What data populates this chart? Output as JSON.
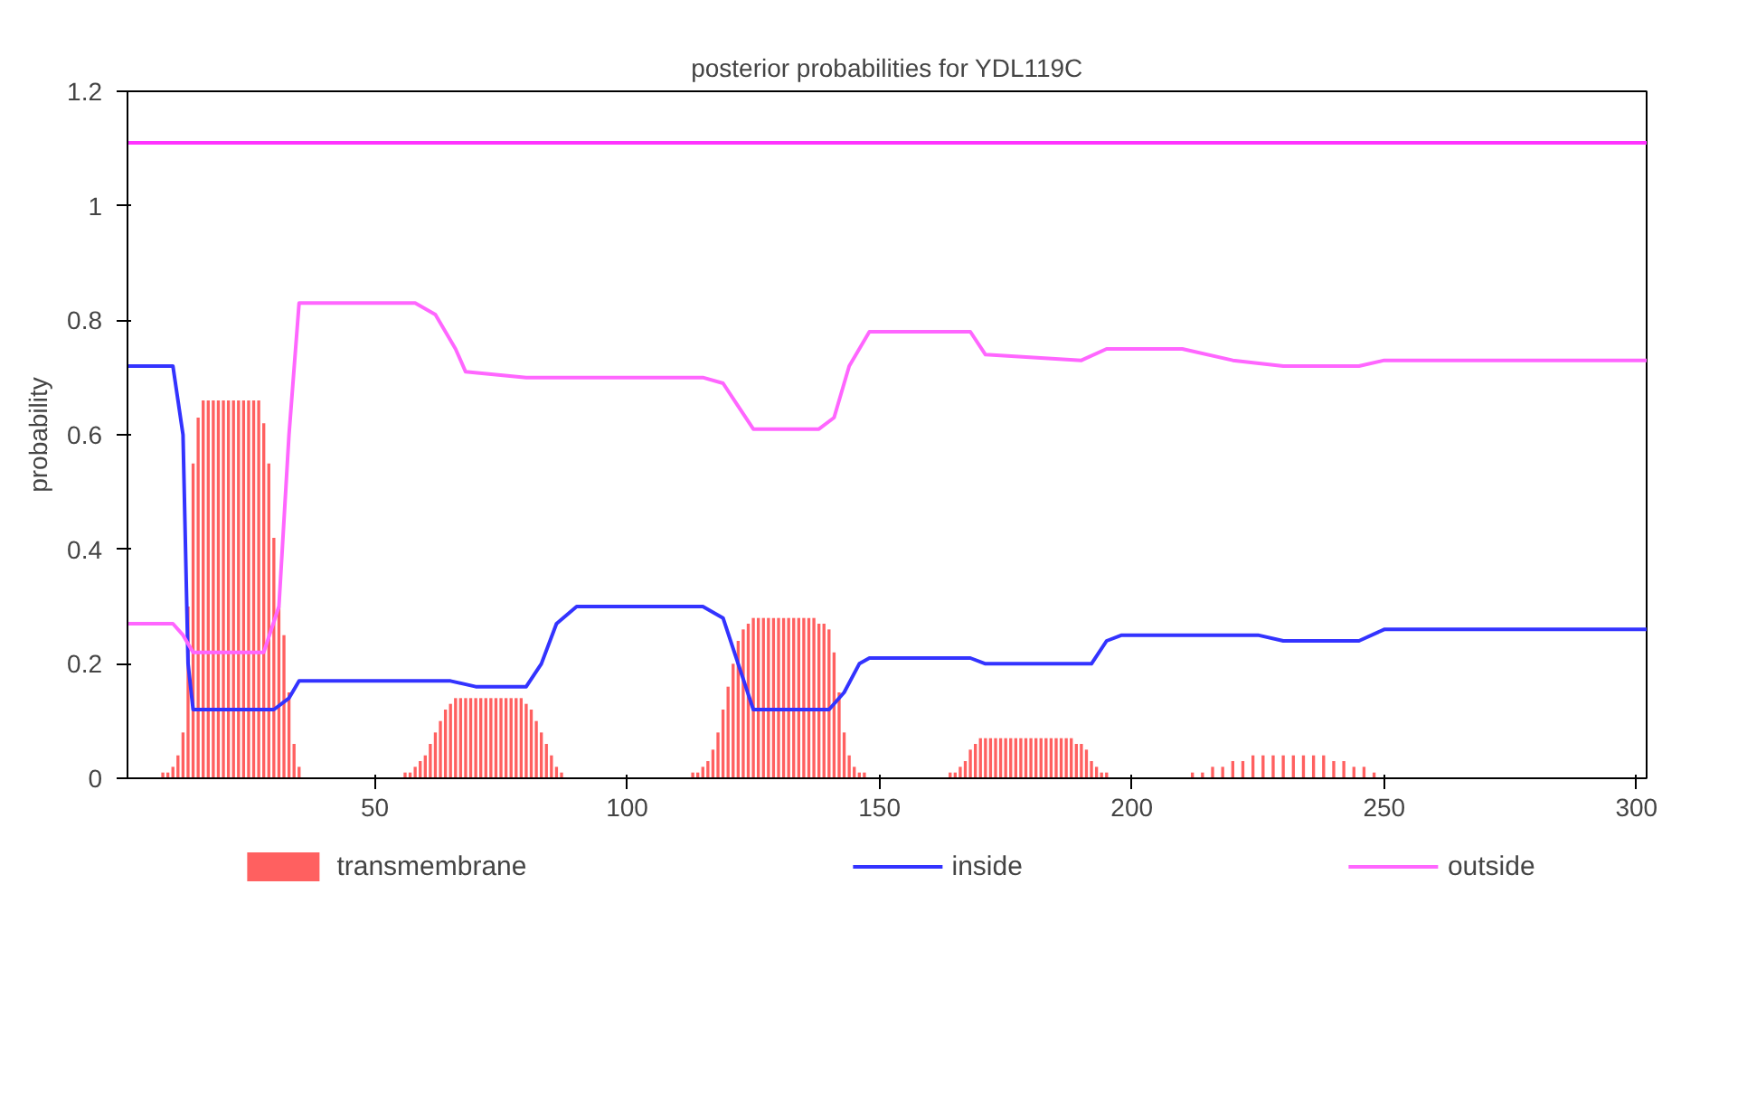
{
  "chart_data": {
    "type": "line",
    "title": "posterior probabilities for YDL119C",
    "ylabel": "probability",
    "xlim": [
      1,
      302
    ],
    "ylim": [
      0,
      1.2
    ],
    "xticks": [
      50,
      100,
      150,
      200,
      250,
      300
    ],
    "yticks": [
      0,
      0.2,
      0.4,
      0.6,
      0.8,
      1,
      1.2
    ],
    "grid": false,
    "legend": "bottom",
    "series": [
      {
        "name": "transmembrane",
        "type": "bar",
        "color": "#ff6060",
        "x": [
          8,
          9,
          10,
          11,
          12,
          13,
          14,
          15,
          16,
          17,
          18,
          19,
          20,
          21,
          22,
          23,
          24,
          25,
          26,
          27,
          28,
          29,
          30,
          31,
          32,
          33,
          34,
          35,
          56,
          57,
          58,
          59,
          60,
          61,
          62,
          63,
          64,
          65,
          66,
          67,
          68,
          69,
          70,
          71,
          72,
          73,
          74,
          75,
          76,
          77,
          78,
          79,
          80,
          81,
          82,
          83,
          84,
          85,
          86,
          87,
          113,
          114,
          115,
          116,
          117,
          118,
          119,
          120,
          121,
          122,
          123,
          124,
          125,
          126,
          127,
          128,
          129,
          130,
          131,
          132,
          133,
          134,
          135,
          136,
          137,
          138,
          139,
          140,
          141,
          142,
          143,
          144,
          145,
          146,
          147,
          164,
          165,
          166,
          167,
          168,
          169,
          170,
          171,
          172,
          173,
          174,
          175,
          176,
          177,
          178,
          179,
          180,
          181,
          182,
          183,
          184,
          185,
          186,
          187,
          188,
          189,
          190,
          191,
          192,
          193,
          194,
          195,
          212,
          214,
          216,
          218,
          220,
          222,
          224,
          226,
          228,
          230,
          232,
          234,
          236,
          238,
          240,
          242,
          244,
          246,
          248
        ],
        "values": [
          0.01,
          0.01,
          0.02,
          0.04,
          0.08,
          0.3,
          0.55,
          0.63,
          0.66,
          0.66,
          0.66,
          0.66,
          0.66,
          0.66,
          0.66,
          0.66,
          0.66,
          0.66,
          0.66,
          0.66,
          0.62,
          0.55,
          0.42,
          0.3,
          0.25,
          0.15,
          0.06,
          0.02,
          0.01,
          0.01,
          0.02,
          0.03,
          0.04,
          0.06,
          0.08,
          0.1,
          0.12,
          0.13,
          0.14,
          0.14,
          0.14,
          0.14,
          0.14,
          0.14,
          0.14,
          0.14,
          0.14,
          0.14,
          0.14,
          0.14,
          0.14,
          0.14,
          0.13,
          0.12,
          0.1,
          0.08,
          0.06,
          0.04,
          0.02,
          0.01,
          0.01,
          0.01,
          0.02,
          0.03,
          0.05,
          0.08,
          0.12,
          0.16,
          0.2,
          0.24,
          0.26,
          0.27,
          0.28,
          0.28,
          0.28,
          0.28,
          0.28,
          0.28,
          0.28,
          0.28,
          0.28,
          0.28,
          0.28,
          0.28,
          0.28,
          0.27,
          0.27,
          0.26,
          0.22,
          0.15,
          0.08,
          0.04,
          0.02,
          0.01,
          0.01,
          0.01,
          0.01,
          0.02,
          0.03,
          0.05,
          0.06,
          0.07,
          0.07,
          0.07,
          0.07,
          0.07,
          0.07,
          0.07,
          0.07,
          0.07,
          0.07,
          0.07,
          0.07,
          0.07,
          0.07,
          0.07,
          0.07,
          0.07,
          0.07,
          0.07,
          0.06,
          0.06,
          0.05,
          0.03,
          0.02,
          0.01,
          0.01,
          0.01,
          0.01,
          0.02,
          0.02,
          0.03,
          0.03,
          0.04,
          0.04,
          0.04,
          0.04,
          0.04,
          0.04,
          0.04,
          0.04,
          0.03,
          0.03,
          0.02,
          0.02,
          0.01
        ]
      },
      {
        "name": "inside",
        "color": "#3333ff",
        "x": [
          1,
          10,
          12,
          13,
          14,
          30,
          33,
          35,
          65,
          70,
          80,
          83,
          86,
          90,
          115,
          119,
          122,
          125,
          140,
          143,
          146,
          148,
          168,
          171,
          192,
          195,
          198,
          225,
          230,
          245,
          250,
          302
        ],
        "values": [
          0.72,
          0.72,
          0.6,
          0.2,
          0.12,
          0.12,
          0.14,
          0.17,
          0.17,
          0.16,
          0.16,
          0.2,
          0.27,
          0.3,
          0.3,
          0.28,
          0.2,
          0.12,
          0.12,
          0.15,
          0.2,
          0.21,
          0.21,
          0.2,
          0.2,
          0.24,
          0.25,
          0.25,
          0.24,
          0.24,
          0.26,
          0.26
        ]
      },
      {
        "name": "outside",
        "color": "#ff66ff",
        "x": [
          1,
          10,
          12,
          14,
          28,
          31,
          33,
          35,
          58,
          62,
          66,
          68,
          80,
          90,
          100,
          115,
          119,
          122,
          125,
          138,
          141,
          144,
          148,
          168,
          171,
          190,
          195,
          210,
          220,
          230,
          245,
          250,
          302
        ],
        "values": [
          0.27,
          0.27,
          0.25,
          0.22,
          0.22,
          0.3,
          0.6,
          0.83,
          0.83,
          0.81,
          0.75,
          0.71,
          0.7,
          0.7,
          0.7,
          0.7,
          0.69,
          0.65,
          0.61,
          0.61,
          0.63,
          0.72,
          0.78,
          0.78,
          0.74,
          0.73,
          0.75,
          0.75,
          0.73,
          0.72,
          0.72,
          0.73,
          0.73
        ]
      },
      {
        "color": "#ff33ff",
        "x": [
          1,
          302
        ],
        "values": [
          1.11,
          1.11
        ]
      }
    ]
  }
}
